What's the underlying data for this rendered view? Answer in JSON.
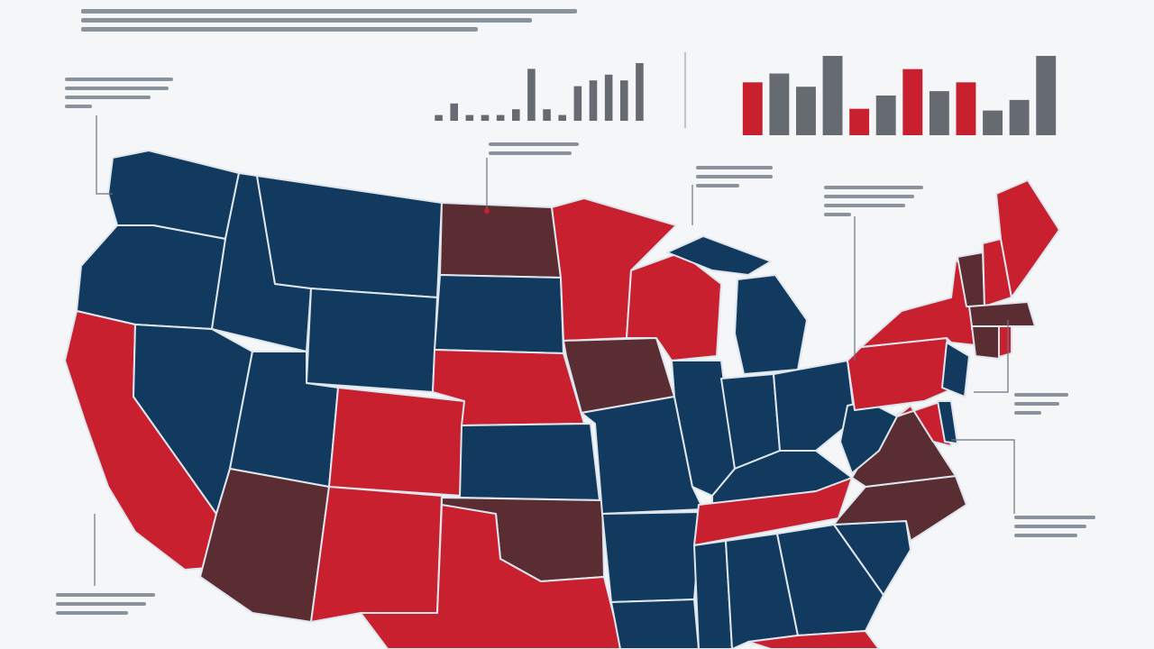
{
  "colors": {
    "background": "#f4f6f8",
    "blue": "#123a5e",
    "red": "#c8202e",
    "maroon": "#5a2d33",
    "gray": "#666b71",
    "border": "#dfe6ee"
  },
  "map": {
    "states": [
      {
        "name": "wa",
        "fill": "blue"
      },
      {
        "name": "or",
        "fill": "blue"
      },
      {
        "name": "ca",
        "fill": "red"
      },
      {
        "name": "id",
        "fill": "blue"
      },
      {
        "name": "nv",
        "fill": "blue"
      },
      {
        "name": "mt",
        "fill": "blue"
      },
      {
        "name": "wy",
        "fill": "blue"
      },
      {
        "name": "ut",
        "fill": "blue"
      },
      {
        "name": "az",
        "fill": "maroon"
      },
      {
        "name": "co",
        "fill": "red"
      },
      {
        "name": "nm",
        "fill": "red"
      },
      {
        "name": "nd",
        "fill": "maroon"
      },
      {
        "name": "sd",
        "fill": "blue"
      },
      {
        "name": "ne",
        "fill": "red"
      },
      {
        "name": "ks",
        "fill": "blue"
      },
      {
        "name": "ok",
        "fill": "maroon"
      },
      {
        "name": "tx",
        "fill": "red"
      },
      {
        "name": "mn",
        "fill": "red"
      },
      {
        "name": "ia",
        "fill": "maroon"
      },
      {
        "name": "mo",
        "fill": "blue"
      },
      {
        "name": "ar",
        "fill": "blue"
      },
      {
        "name": "la",
        "fill": "blue"
      },
      {
        "name": "wi",
        "fill": "red"
      },
      {
        "name": "il",
        "fill": "blue"
      },
      {
        "name": "mi",
        "fill": "blue"
      },
      {
        "name": "in",
        "fill": "blue"
      },
      {
        "name": "oh",
        "fill": "blue"
      },
      {
        "name": "ky",
        "fill": "blue"
      },
      {
        "name": "tn",
        "fill": "red"
      },
      {
        "name": "ms",
        "fill": "blue"
      },
      {
        "name": "al",
        "fill": "blue"
      },
      {
        "name": "ga",
        "fill": "blue"
      },
      {
        "name": "fl",
        "fill": "red"
      },
      {
        "name": "sc",
        "fill": "blue"
      },
      {
        "name": "nc",
        "fill": "maroon"
      },
      {
        "name": "va",
        "fill": "maroon"
      },
      {
        "name": "wv",
        "fill": "blue"
      },
      {
        "name": "pa",
        "fill": "red"
      },
      {
        "name": "ny",
        "fill": "red"
      },
      {
        "name": "nj",
        "fill": "blue"
      },
      {
        "name": "md",
        "fill": "red"
      },
      {
        "name": "de",
        "fill": "blue"
      },
      {
        "name": "vt",
        "fill": "maroon"
      },
      {
        "name": "nh",
        "fill": "red"
      },
      {
        "name": "me",
        "fill": "red"
      },
      {
        "name": "ma",
        "fill": "maroon"
      },
      {
        "name": "ct",
        "fill": "maroon"
      },
      {
        "name": "ri",
        "fill": "red"
      }
    ]
  },
  "chart_data": [
    {
      "type": "bar",
      "values": [
        1,
        3,
        1,
        1,
        1,
        2,
        9,
        2,
        1,
        6,
        7,
        8,
        7,
        10
      ],
      "colors": [
        "gray"
      ],
      "ylim": [
        0,
        10
      ]
    },
    {
      "type": "bar",
      "values": [
        6,
        7,
        5.5,
        9,
        3,
        4.5,
        7.5,
        5,
        6,
        2.8,
        4,
        9
      ],
      "colors": [
        "red",
        "gray",
        "gray",
        "gray",
        "red",
        "gray",
        "red",
        "gray",
        "red",
        "gray",
        "gray",
        "gray"
      ],
      "ylim": [
        0,
        9
      ]
    }
  ]
}
